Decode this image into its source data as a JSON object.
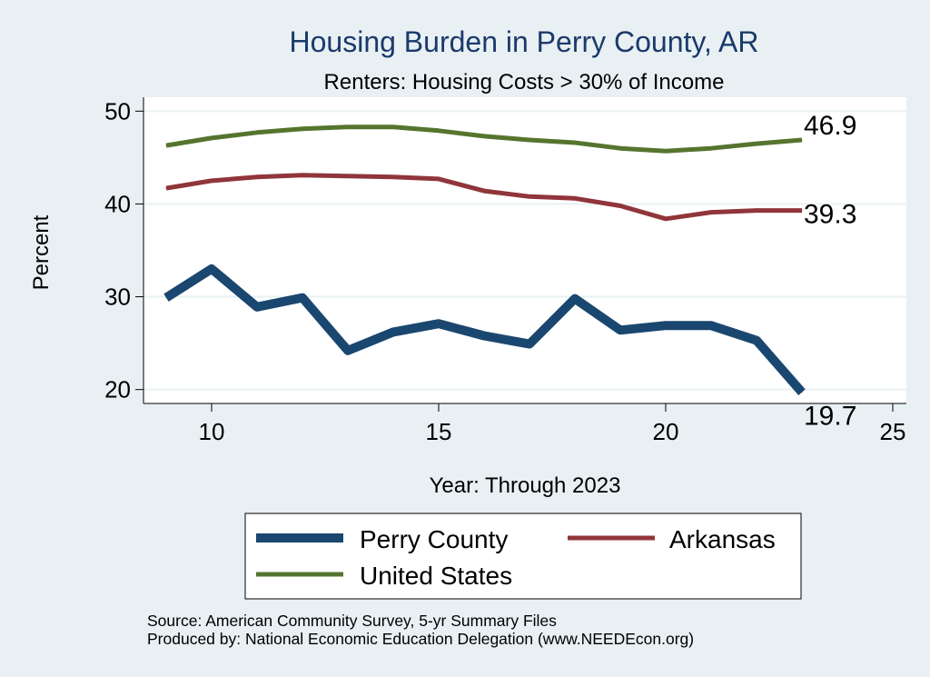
{
  "chart_data": {
    "type": "line",
    "title": "Housing Burden in Perry County, AR",
    "subtitle": "Renters: Housing Costs > 30% of Income",
    "xlabel": "Year: Through 2023",
    "ylabel": "Percent",
    "xlim": [
      8.5,
      25.3
    ],
    "ylim": [
      18.5,
      51.5
    ],
    "x_ticks": [
      10,
      15,
      20,
      25
    ],
    "y_ticks": [
      20,
      30,
      40,
      50
    ],
    "grid": true,
    "series": [
      {
        "name": "Perry County",
        "color": "#1a476f",
        "x": [
          9,
          10,
          11,
          12,
          13,
          14,
          15,
          16,
          17,
          18,
          19,
          20,
          21,
          22,
          23
        ],
        "values": [
          29.9,
          33.0,
          28.9,
          29.9,
          24.2,
          26.2,
          27.1,
          25.8,
          24.9,
          29.8,
          26.4,
          26.9,
          26.9,
          25.3,
          19.7
        ],
        "end_label": "19.7"
      },
      {
        "name": "Arkansas",
        "color": "#90353b",
        "x": [
          9,
          10,
          11,
          12,
          13,
          14,
          15,
          16,
          17,
          18,
          19,
          20,
          21,
          22,
          23
        ],
        "values": [
          41.7,
          42.5,
          42.9,
          43.1,
          43.0,
          42.9,
          42.7,
          41.4,
          40.8,
          40.6,
          39.8,
          38.4,
          39.1,
          39.3,
          39.3
        ],
        "end_label": "39.3"
      },
      {
        "name": "United States",
        "color": "#55752f",
        "x": [
          9,
          10,
          11,
          12,
          13,
          14,
          15,
          16,
          17,
          18,
          19,
          20,
          21,
          22,
          23
        ],
        "values": [
          46.3,
          47.1,
          47.7,
          48.1,
          48.3,
          48.3,
          47.9,
          47.3,
          46.9,
          46.6,
          46.0,
          45.7,
          46.0,
          46.5,
          46.9
        ],
        "end_label": "46.9"
      }
    ],
    "legend": {
      "placement": "bottom",
      "entries": [
        "Perry County",
        "Arkansas",
        "United States"
      ]
    },
    "source_note": "Source: American Community Survey, 5-yr Summary Files",
    "produced_note": "Produced by: National Economic Education Delegation (www.NEEDEcon.org)"
  }
}
